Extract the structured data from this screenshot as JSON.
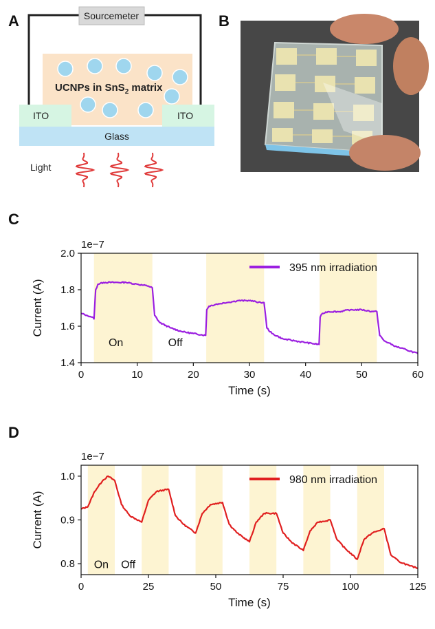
{
  "panels": {
    "A": "A",
    "B": "B",
    "C": "C",
    "D": "D"
  },
  "schematic": {
    "sourcemeter": "Sourcemeter",
    "matrix_label_pre": "UCNPs in SnS",
    "matrix_label_sub": "2",
    "matrix_label_post": " matrix",
    "ito_left": "ITO",
    "ito_right": "ITO",
    "glass": "Glass",
    "light": "Light",
    "colors": {
      "matrix": "#fbe3c8",
      "ito": "#d6f5e3",
      "glass": "#bfe3f5",
      "sphere": "#9fd6ee",
      "wave": "#e03a3a"
    }
  },
  "photo": {
    "icon": "device-photo-icon"
  },
  "chart_data": [
    {
      "type": "line",
      "panel": "C",
      "multiplier_label": "1e−7",
      "xlabel": "Time (s)",
      "ylabel": "Current (A)",
      "xlim": [
        0,
        60
      ],
      "ylim": [
        1.4,
        2.0
      ],
      "xticks": [
        0,
        10,
        20,
        30,
        40,
        50,
        60
      ],
      "yticks": [
        "1.4",
        "1.6",
        "1.8",
        "2.0"
      ],
      "ytick_values": [
        1.4,
        1.6,
        1.8,
        2.0
      ],
      "on_intervals": [
        [
          2.3,
          12.7
        ],
        [
          22.3,
          32.6
        ],
        [
          42.5,
          52.7
        ]
      ],
      "annotations": [
        {
          "text": "On",
          "x": 6.2,
          "y": 1.49
        },
        {
          "text": "Off",
          "x": 16.8,
          "y": 1.49
        }
      ],
      "legend": {
        "label": "395 nm irradiation",
        "position": "top-right"
      },
      "series": [
        {
          "name": "395 nm irradiation",
          "color": "#9b1fe0",
          "x": [
            0,
            1,
            2,
            2.3,
            2.6,
            3,
            4,
            6,
            8,
            10,
            12,
            12.7,
            13.1,
            14,
            16,
            18,
            20,
            22.2,
            22.4,
            22.8,
            24,
            26,
            28,
            30,
            32,
            32.6,
            33.1,
            34,
            36,
            38,
            40,
            42.4,
            42.6,
            43,
            44,
            46,
            48,
            50,
            52,
            52.7,
            53.2,
            54,
            56,
            58,
            60
          ],
          "y": [
            1.67,
            1.66,
            1.65,
            1.64,
            1.8,
            1.83,
            1.84,
            1.84,
            1.84,
            1.83,
            1.82,
            1.81,
            1.66,
            1.62,
            1.59,
            1.57,
            1.56,
            1.55,
            1.69,
            1.71,
            1.72,
            1.73,
            1.74,
            1.74,
            1.73,
            1.73,
            1.59,
            1.56,
            1.53,
            1.52,
            1.51,
            1.5,
            1.65,
            1.67,
            1.68,
            1.68,
            1.69,
            1.69,
            1.68,
            1.68,
            1.55,
            1.52,
            1.49,
            1.47,
            1.45
          ]
        }
      ]
    },
    {
      "type": "line",
      "panel": "D",
      "multiplier_label": "1e−7",
      "xlabel": "Time (s)",
      "ylabel": "Current (A)",
      "xlim": [
        0,
        125
      ],
      "ylim": [
        0.775,
        1.025
      ],
      "xticks": [
        0,
        25,
        50,
        75,
        100,
        125
      ],
      "yticks": [
        "0.8",
        "0.9",
        "1.0"
      ],
      "ytick_values": [
        0.8,
        0.9,
        1.0
      ],
      "on_intervals": [
        [
          2.5,
          12.5
        ],
        [
          22.5,
          32.5
        ],
        [
          42.5,
          52.5
        ],
        [
          62.5,
          72.5
        ],
        [
          82.5,
          92.5
        ],
        [
          102.5,
          112.5
        ]
      ],
      "annotations": [
        {
          "text": "On",
          "x": 7.5,
          "y": 0.79
        },
        {
          "text": "Off",
          "x": 17.5,
          "y": 0.79
        }
      ],
      "legend": {
        "label": "980 nm irradiation",
        "position": "top-right"
      },
      "series": [
        {
          "name": "980 nm irradiation",
          "color": "#e01f1f",
          "x": [
            0,
            2.5,
            5,
            8,
            10,
            12.5,
            15,
            18,
            22.5,
            25,
            28,
            32.5,
            35,
            38,
            42.5,
            45,
            48,
            52.5,
            55,
            58,
            62.5,
            65,
            68,
            72.5,
            75,
            78,
            82.5,
            85,
            88,
            92.5,
            95,
            98,
            102.5,
            105,
            108,
            112.5,
            115,
            118,
            122,
            125
          ],
          "y": [
            0.925,
            0.93,
            0.965,
            0.99,
            1.0,
            0.99,
            0.935,
            0.91,
            0.895,
            0.945,
            0.965,
            0.97,
            0.91,
            0.89,
            0.87,
            0.915,
            0.935,
            0.94,
            0.89,
            0.87,
            0.85,
            0.895,
            0.915,
            0.915,
            0.87,
            0.85,
            0.83,
            0.875,
            0.895,
            0.9,
            0.855,
            0.835,
            0.81,
            0.855,
            0.87,
            0.88,
            0.82,
            0.805,
            0.795,
            0.79
          ]
        }
      ]
    }
  ]
}
